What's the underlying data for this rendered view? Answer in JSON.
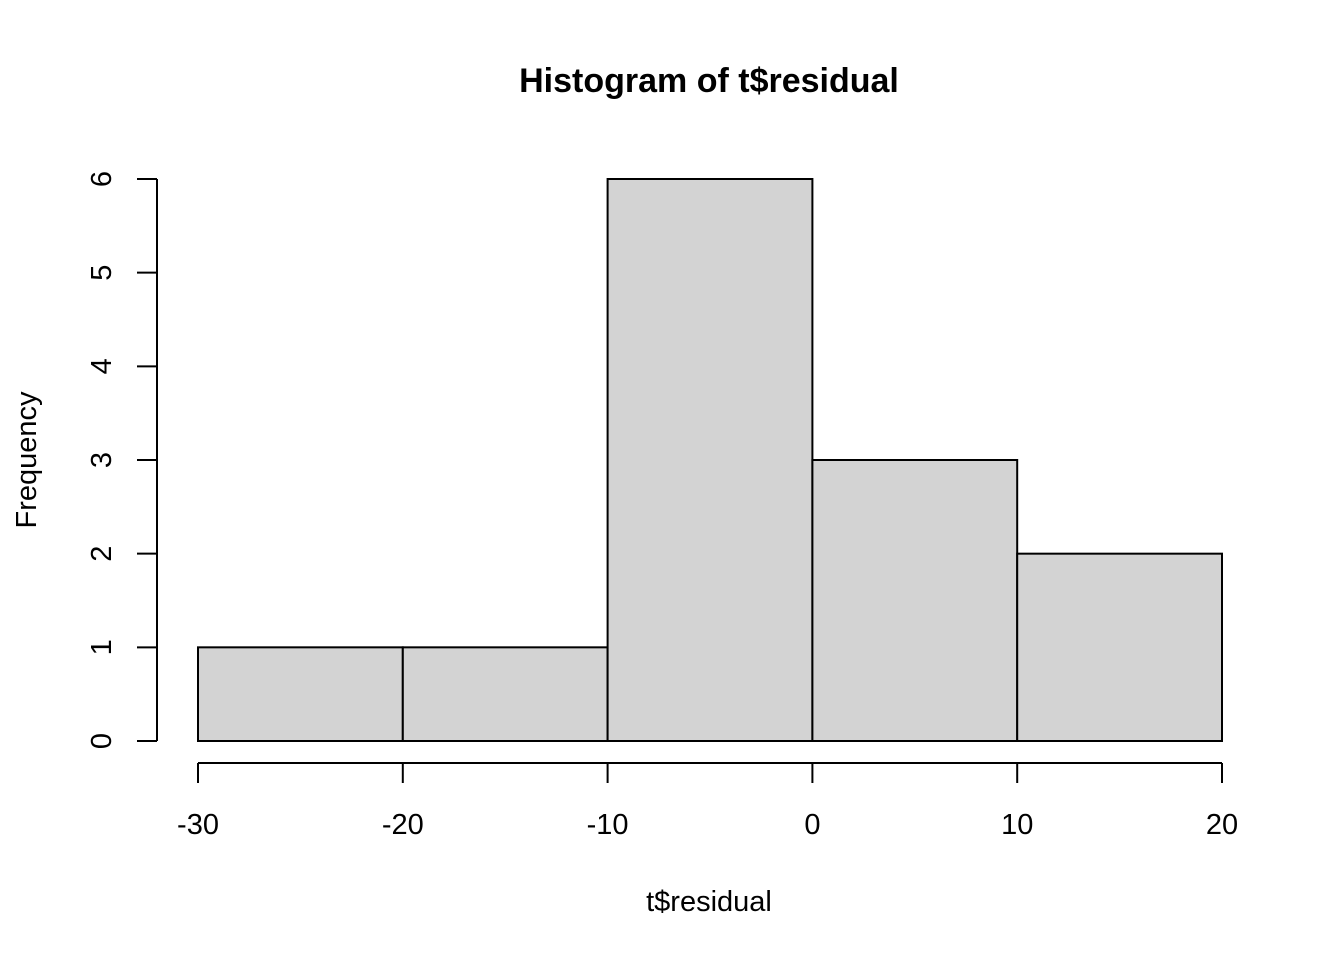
{
  "chart_data": {
    "type": "bar",
    "title": "Histogram of t$residual",
    "xlabel": "t$residual",
    "ylabel": "Frequency",
    "bins": [
      {
        "start": -30,
        "end": -20,
        "count": 1
      },
      {
        "start": -20,
        "end": -10,
        "count": 1
      },
      {
        "start": -10,
        "end": 0,
        "count": 6
      },
      {
        "start": 0,
        "end": 10,
        "count": 3
      },
      {
        "start": 10,
        "end": 20,
        "count": 2
      }
    ],
    "x_ticks": [
      -30,
      -20,
      -10,
      0,
      10,
      20
    ],
    "y_ticks": [
      0,
      1,
      2,
      3,
      4,
      5,
      6
    ],
    "xlim": [
      -30,
      20
    ],
    "ylim": [
      0,
      6
    ],
    "bar_color": "#d3d3d3",
    "grid": false,
    "legend": "none"
  }
}
